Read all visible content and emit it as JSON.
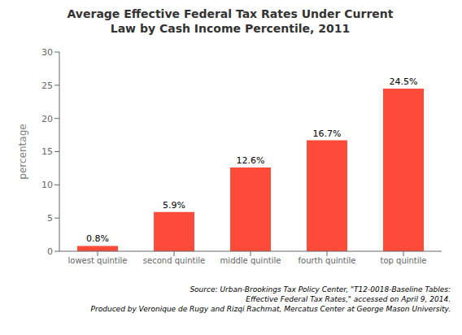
{
  "chart_data": {
    "type": "bar",
    "title": "Average Effective Federal Tax Rates Under Current\nLaw by Cash Income Percentile, 2011",
    "categories": [
      "lowest quintile",
      "second quintile",
      "middle quintile",
      "fourth quintile",
      "top quintile"
    ],
    "values": [
      0.8,
      5.9,
      12.6,
      16.7,
      24.5
    ],
    "value_labels": [
      "0.8%",
      "5.9%",
      "12.6%",
      "16.7%",
      "24.5%"
    ],
    "data_labels": true,
    "color": "#FF4B3A",
    "ylabel": "percentage",
    "ylim": [
      0,
      30
    ],
    "yticks": [
      0,
      5,
      10,
      15,
      20,
      25,
      30
    ],
    "grid": false,
    "annotations": [
      "Source: Urban-Brookings Tax Policy Center, \"T12-0018-Baseline Tables:\nEffective Federal Tax Rates,\" accessed on April 9, 2014.\nProduced by Veronique de Rugy and Rizqi Rachmat, Mercatus Center at George Mason University."
    ]
  }
}
